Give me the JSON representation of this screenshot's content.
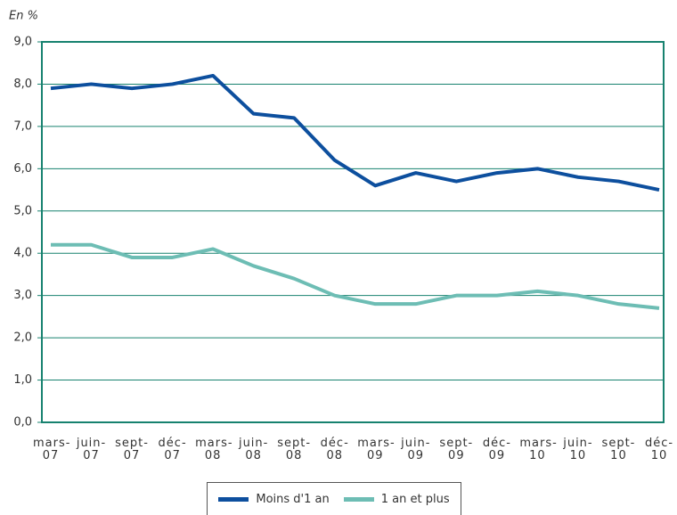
{
  "chart_data": {
    "type": "line",
    "y_label": "En %",
    "categories": [
      "mars-07",
      "juin-07",
      "sept-07",
      "déc-07",
      "mars-08",
      "juin-08",
      "sept-08",
      "déc-08",
      "mars-09",
      "juin-09",
      "sept-09",
      "déc-09",
      "mars-10",
      "juin-10",
      "sept-10",
      "déc-10"
    ],
    "series": [
      {
        "name": "Moins d'1 an",
        "color": "#0d4f9e",
        "values": [
          7.9,
          8.0,
          7.9,
          8.0,
          8.2,
          7.3,
          7.2,
          6.2,
          5.6,
          5.9,
          5.7,
          5.9,
          6.0,
          5.8,
          5.7,
          5.5
        ]
      },
      {
        "name": "1 an et plus",
        "color": "#6dbdb4",
        "values": [
          4.2,
          4.2,
          3.9,
          3.9,
          4.1,
          3.7,
          3.4,
          3.0,
          2.8,
          2.8,
          3.0,
          3.0,
          3.1,
          3.0,
          2.8,
          2.7
        ]
      }
    ],
    "ylim": [
      0,
      9
    ],
    "yticks": [
      {
        "value": 0,
        "label": "0,0"
      },
      {
        "value": 1,
        "label": "1,0"
      },
      {
        "value": 2,
        "label": "2,0"
      },
      {
        "value": 3,
        "label": "3,0"
      },
      {
        "value": 4,
        "label": "4,0"
      },
      {
        "value": 5,
        "label": "5,0"
      },
      {
        "value": 6,
        "label": "6,0"
      },
      {
        "value": 7,
        "label": "7,0"
      },
      {
        "value": 8,
        "label": "8,0"
      },
      {
        "value": 9,
        "label": "9,0"
      }
    ],
    "grid": true
  }
}
